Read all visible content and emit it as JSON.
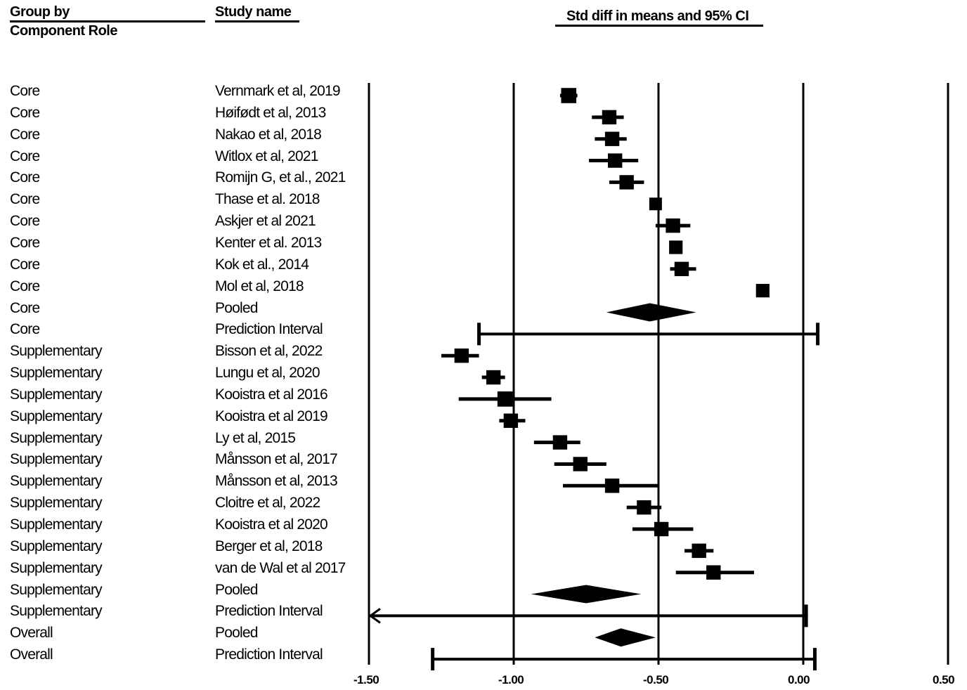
{
  "headers": {
    "group_line1": "Group by",
    "group_line2": "Component Role",
    "study": "Study name",
    "effect": "Std diff in means and 95% CI"
  },
  "chart_data": {
    "type": "forest",
    "xlim": [
      -1.5,
      0.5
    ],
    "ticks": [
      -1.5,
      -1.0,
      -0.5,
      0.0,
      0.5
    ],
    "tick_labels": [
      "-1.50",
      "-1.00",
      "-0.50",
      "0.00",
      "0.50"
    ],
    "rows": [
      {
        "group": "Core",
        "study": "Vernmark et al, 2019",
        "kind": "study",
        "est": -0.81,
        "lo": -0.84,
        "hi": -0.78,
        "weight": 0.9
      },
      {
        "group": "Core",
        "study": "Høifødt et al, 2013",
        "kind": "study",
        "est": -0.67,
        "lo": -0.73,
        "hi": -0.62,
        "weight": 0.85
      },
      {
        "group": "Core",
        "study": "Nakao et al, 2018",
        "kind": "study",
        "est": -0.66,
        "lo": -0.72,
        "hi": -0.61,
        "weight": 0.85
      },
      {
        "group": "Core",
        "study": "Witlox et al, 2021",
        "kind": "study",
        "est": -0.65,
        "lo": -0.74,
        "hi": -0.57,
        "weight": 0.85
      },
      {
        "group": "Core",
        "study": "Romijn G, et al., 2021",
        "kind": "study",
        "est": -0.61,
        "lo": -0.67,
        "hi": -0.55,
        "weight": 0.85
      },
      {
        "group": "Core",
        "study": "Thase et al. 2018",
        "kind": "study",
        "est": -0.51,
        "lo": -0.53,
        "hi": -0.49,
        "weight": 0.75
      },
      {
        "group": "Core",
        "study": "Askjer et al 2021",
        "kind": "study",
        "est": -0.45,
        "lo": -0.51,
        "hi": -0.39,
        "weight": 0.85
      },
      {
        "group": "Core",
        "study": "Kenter et al.  2013",
        "kind": "study",
        "est": -0.44,
        "lo": -0.46,
        "hi": -0.42,
        "weight": 0.8
      },
      {
        "group": "Core",
        "study": "Kok et al., 2014",
        "kind": "study",
        "est": -0.42,
        "lo": -0.46,
        "hi": -0.37,
        "weight": 0.85
      },
      {
        "group": "Core",
        "study": "Mol et al, 2018",
        "kind": "study",
        "est": -0.14,
        "lo": -0.15,
        "hi": -0.13,
        "weight": 0.8
      },
      {
        "group": "Core",
        "study": "Pooled",
        "kind": "pooled",
        "est": -0.53,
        "lo": -0.68,
        "hi": -0.37
      },
      {
        "group": "Core",
        "study": "Prediction Interval",
        "kind": "pi",
        "est": -0.53,
        "lo": -1.12,
        "hi": 0.05
      },
      {
        "group": "Supplementary",
        "study": "Bisson et al, 2022",
        "kind": "study",
        "est": -1.18,
        "lo": -1.25,
        "hi": -1.12,
        "weight": 0.85
      },
      {
        "group": "Supplementary",
        "study": "Lungu et al, 2020",
        "kind": "study",
        "est": -1.07,
        "lo": -1.11,
        "hi": -1.03,
        "weight": 0.85
      },
      {
        "group": "Supplementary",
        "study": "Kooistra et al 2016",
        "kind": "study",
        "est": -1.03,
        "lo": -1.19,
        "hi": -0.87,
        "weight": 0.9
      },
      {
        "group": "Supplementary",
        "study": "Kooistra et al 2019",
        "kind": "study",
        "est": -1.01,
        "lo": -1.05,
        "hi": -0.96,
        "weight": 0.85
      },
      {
        "group": "Supplementary",
        "study": "Ly et al, 2015",
        "kind": "study",
        "est": -0.84,
        "lo": -0.93,
        "hi": -0.77,
        "weight": 0.85
      },
      {
        "group": "Supplementary",
        "study": "Månsson et al, 2017",
        "kind": "study",
        "est": -0.77,
        "lo": -0.86,
        "hi": -0.68,
        "weight": 0.85
      },
      {
        "group": "Supplementary",
        "study": "Månsson et al, 2013",
        "kind": "study",
        "est": -0.66,
        "lo": -0.83,
        "hi": -0.5,
        "weight": 0.85
      },
      {
        "group": "Supplementary",
        "study": "Cloitre et al, 2022",
        "kind": "study",
        "est": -0.55,
        "lo": -0.61,
        "hi": -0.49,
        "weight": 0.85
      },
      {
        "group": "Supplementary",
        "study": "Kooistra et al 2020",
        "kind": "study",
        "est": -0.49,
        "lo": -0.59,
        "hi": -0.38,
        "weight": 0.85
      },
      {
        "group": "Supplementary",
        "study": "Berger et al, 2018",
        "kind": "study",
        "est": -0.36,
        "lo": -0.41,
        "hi": -0.31,
        "weight": 0.85
      },
      {
        "group": "Supplementary",
        "study": "van de Wal et al 2017",
        "kind": "study",
        "est": -0.31,
        "lo": -0.44,
        "hi": -0.17,
        "weight": 0.85
      },
      {
        "group": "Supplementary",
        "study": "Pooled",
        "kind": "pooled",
        "est": -0.75,
        "lo": -0.94,
        "hi": -0.56
      },
      {
        "group": "Supplementary",
        "study": "Prediction Interval",
        "kind": "pi",
        "est": -0.75,
        "lo": -1.5,
        "hi": 0.01,
        "lo_arrow": true
      },
      {
        "group": "Overall",
        "study": "Pooled",
        "kind": "pooled",
        "est": -0.63,
        "lo": -0.72,
        "hi": -0.51
      },
      {
        "group": "Overall",
        "study": "Prediction Interval",
        "kind": "pi",
        "est": -0.63,
        "lo": -1.28,
        "hi": 0.04
      }
    ]
  }
}
